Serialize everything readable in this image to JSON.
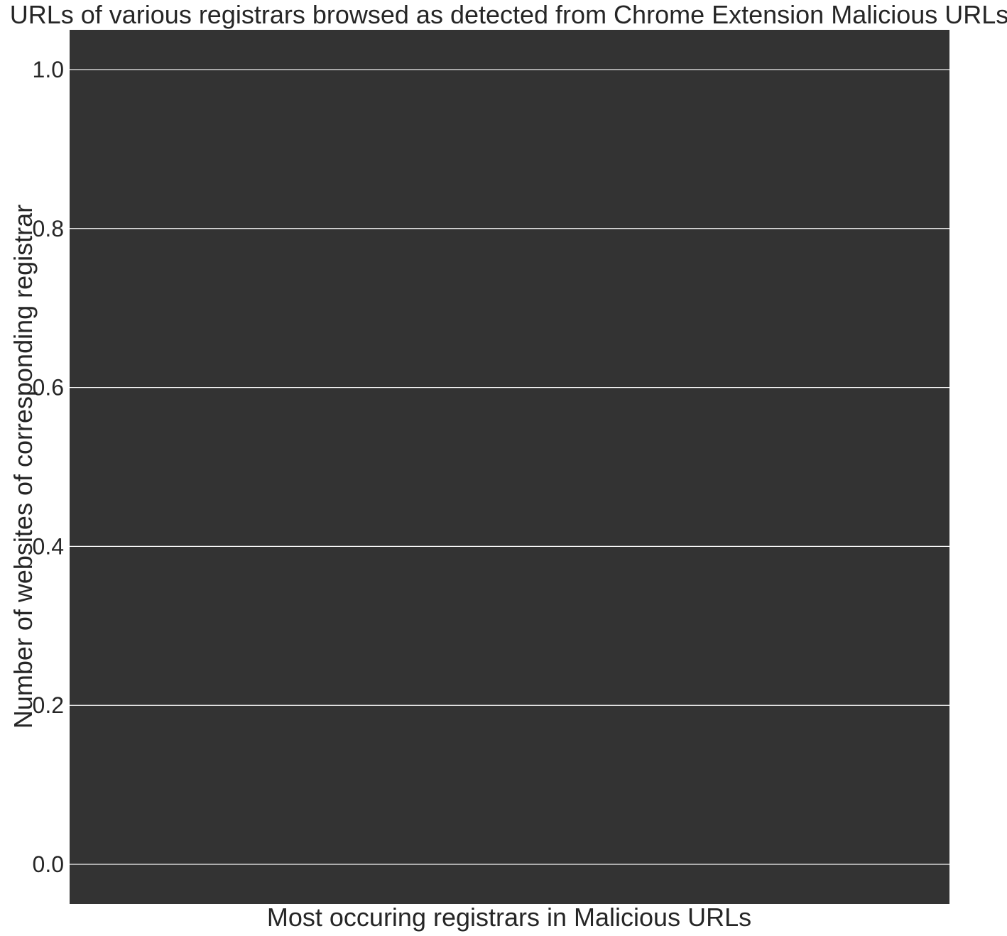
{
  "chart_data": {
    "type": "bar",
    "title": "URLs of various registrars browsed as detected from Chrome Extension Malicious URLs",
    "xlabel": "Most occuring registrars in Malicious URLs",
    "ylabel": "Number of websites of corresponding registrar",
    "categories": [],
    "values": [],
    "ylim": [
      -0.05,
      1.05
    ],
    "yticks": [
      0.0,
      0.2,
      0.4,
      0.6,
      0.8,
      1.0
    ],
    "ytick_labels": [
      "0.0",
      "0.2",
      "0.4",
      "0.6",
      "0.8",
      "1.0"
    ],
    "grid": true,
    "plot_background": "#333333",
    "grid_color": "#ffffff",
    "text_color": "#262626"
  }
}
